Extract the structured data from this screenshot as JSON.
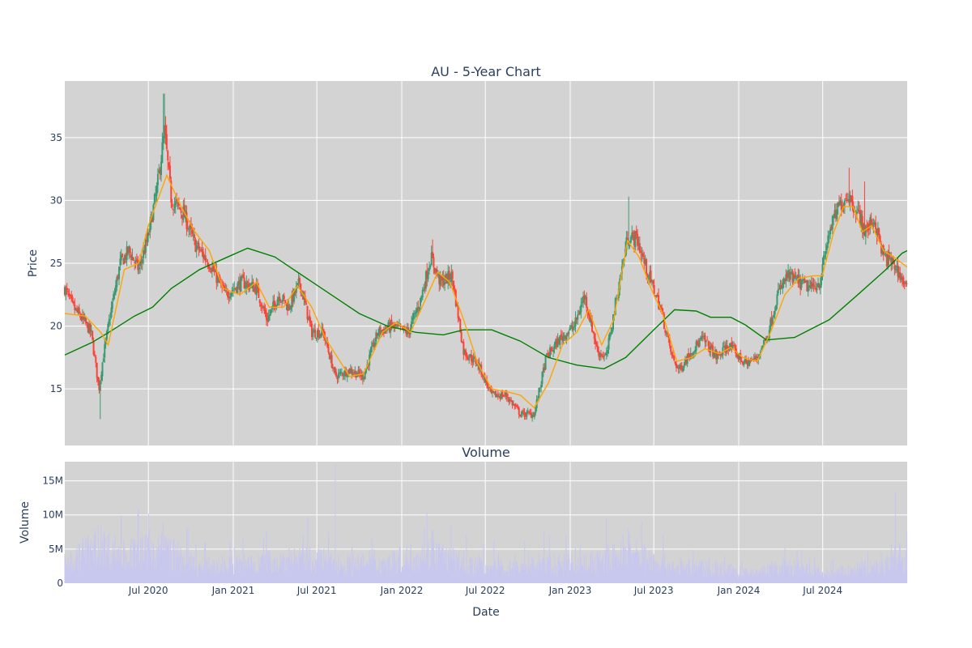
{
  "chart_data": [
    {
      "type": "candlestick",
      "title": "AU - 5-Year Chart",
      "ylabel": "Price",
      "ylim": [
        10.5,
        39.5
      ],
      "y_ticks": [
        15,
        20,
        25,
        30,
        35
      ],
      "xlim": [
        "2020-01-02",
        "2024-12-31"
      ],
      "x_ticks": [
        "2020-07-01",
        "2021-01-01",
        "2021-07-01",
        "2022-01-01",
        "2022-07-01",
        "2023-01-01",
        "2023-07-01",
        "2024-01-01",
        "2024-07-01"
      ],
      "x_tick_labels": [
        "Jul 2020",
        "Jan 2021",
        "Jul 2021",
        "Jan 2022",
        "Jul 2022",
        "Jan 2023",
        "Jul 2023",
        "Jan 2024",
        "Jul 2024"
      ],
      "grid": true,
      "colors": {
        "increasing": "#3d9970",
        "decreasing": "#ff4136",
        "ma_short": "#ffa500",
        "ma_long": "#008000",
        "plot_bg": "#d3d3d3"
      },
      "close_anchors": [
        [
          "2020-01-02",
          23.0
        ],
        [
          "2020-01-20",
          21.5
        ],
        [
          "2020-02-10",
          20.5
        ],
        [
          "2020-02-28",
          19.5
        ],
        [
          "2020-03-16",
          15.0
        ],
        [
          "2020-03-25",
          17.5
        ],
        [
          "2020-04-10",
          21.0
        ],
        [
          "2020-05-01",
          25.0
        ],
        [
          "2020-05-20",
          26.0
        ],
        [
          "2020-06-10",
          24.5
        ],
        [
          "2020-06-30",
          27.0
        ],
        [
          "2020-07-20",
          31.0
        ],
        [
          "2020-08-05",
          35.5
        ],
        [
          "2020-08-20",
          30.0
        ],
        [
          "2020-09-15",
          29.0
        ],
        [
          "2020-10-10",
          26.5
        ],
        [
          "2020-11-10",
          25.0
        ],
        [
          "2020-12-15",
          22.5
        ],
        [
          "2021-01-20",
          23.5
        ],
        [
          "2021-02-20",
          23.0
        ],
        [
          "2021-03-15",
          20.5
        ],
        [
          "2021-04-10",
          22.5
        ],
        [
          "2021-05-01",
          21.5
        ],
        [
          "2021-05-25",
          23.5
        ],
        [
          "2021-06-20",
          19.5
        ],
        [
          "2021-07-15",
          19.5
        ],
        [
          "2021-08-10",
          16.0
        ],
        [
          "2021-09-10",
          16.5
        ],
        [
          "2021-10-10",
          16.0
        ],
        [
          "2021-11-10",
          19.5
        ],
        [
          "2021-12-10",
          20.0
        ],
        [
          "2022-01-15",
          19.5
        ],
        [
          "2022-02-10",
          22.0
        ],
        [
          "2022-03-05",
          25.5
        ],
        [
          "2022-03-25",
          23.5
        ],
        [
          "2022-04-20",
          24.0
        ],
        [
          "2022-05-15",
          18.0
        ],
        [
          "2022-06-15",
          17.0
        ],
        [
          "2022-07-15",
          14.5
        ],
        [
          "2022-08-15",
          14.5
        ],
        [
          "2022-09-15",
          13.0
        ],
        [
          "2022-10-15",
          13.0
        ],
        [
          "2022-11-10",
          17.5
        ],
        [
          "2022-12-10",
          19.0
        ],
        [
          "2023-01-10",
          20.0
        ],
        [
          "2023-02-01",
          22.5
        ],
        [
          "2023-03-01",
          18.0
        ],
        [
          "2023-03-20",
          17.5
        ],
        [
          "2023-04-10",
          22.0
        ],
        [
          "2023-05-05",
          27.0
        ],
        [
          "2023-05-25",
          27.0
        ],
        [
          "2023-06-15",
          24.5
        ],
        [
          "2023-07-15",
          21.5
        ],
        [
          "2023-08-10",
          17.5
        ],
        [
          "2023-08-25",
          16.5
        ],
        [
          "2023-09-20",
          18.0
        ],
        [
          "2023-10-15",
          19.0
        ],
        [
          "2023-11-15",
          17.5
        ],
        [
          "2023-12-10",
          18.5
        ],
        [
          "2024-01-15",
          17.0
        ],
        [
          "2024-02-10",
          17.5
        ],
        [
          "2024-03-05",
          19.5
        ],
        [
          "2024-03-25",
          22.5
        ],
        [
          "2024-04-15",
          24.0
        ],
        [
          "2024-05-10",
          23.5
        ],
        [
          "2024-06-05",
          23.0
        ],
        [
          "2024-06-25",
          23.5
        ],
        [
          "2024-07-15",
          27.5
        ],
        [
          "2024-08-05",
          29.5
        ],
        [
          "2024-08-25",
          30.5
        ],
        [
          "2024-09-15",
          29.0
        ],
        [
          "2024-10-01",
          27.5
        ],
        [
          "2024-10-20",
          28.5
        ],
        [
          "2024-11-10",
          25.5
        ],
        [
          "2024-12-01",
          25.0
        ],
        [
          "2024-12-31",
          23.0
        ]
      ],
      "spikes": [
        [
          "2020-03-18",
          12.6
        ],
        [
          "2020-08-04",
          38.5
        ],
        [
          "2022-03-08",
          26.9
        ],
        [
          "2023-05-08",
          30.3
        ],
        [
          "2024-08-28",
          32.6
        ],
        [
          "2024-09-30",
          31.5
        ]
      ],
      "ma_short": [
        [
          "2020-01-02",
          21.0
        ],
        [
          "2020-02-15",
          20.8
        ],
        [
          "2020-03-20",
          19.5
        ],
        [
          "2020-04-05",
          18.5
        ],
        [
          "2020-05-10",
          24.5
        ],
        [
          "2020-06-10",
          25.0
        ],
        [
          "2020-07-01",
          28.0
        ],
        [
          "2020-08-10",
          32.0
        ],
        [
          "2020-09-10",
          29.5
        ],
        [
          "2020-10-10",
          27.5
        ],
        [
          "2020-11-10",
          26.0
        ],
        [
          "2020-12-10",
          23.0
        ],
        [
          "2021-01-15",
          22.5
        ],
        [
          "2021-02-20",
          23.5
        ],
        [
          "2021-03-20",
          21.5
        ],
        [
          "2021-04-20",
          21.5
        ],
        [
          "2021-05-20",
          23.2
        ],
        [
          "2021-06-20",
          21.5
        ],
        [
          "2021-07-20",
          19.0
        ],
        [
          "2021-09-10",
          16.0
        ],
        [
          "2021-10-10",
          16.2
        ],
        [
          "2021-11-20",
          19.5
        ],
        [
          "2021-12-20",
          20.3
        ],
        [
          "2022-01-20",
          19.5
        ],
        [
          "2022-02-20",
          22.0
        ],
        [
          "2022-03-20",
          24.3
        ],
        [
          "2022-04-15",
          23.5
        ],
        [
          "2022-05-15",
          20.5
        ],
        [
          "2022-06-15",
          17.0
        ],
        [
          "2022-07-15",
          15.0
        ],
        [
          "2022-08-15",
          14.8
        ],
        [
          "2022-09-15",
          14.5
        ],
        [
          "2022-10-15",
          13.5
        ],
        [
          "2022-11-15",
          15.5
        ],
        [
          "2022-12-15",
          18.5
        ],
        [
          "2023-01-15",
          19.5
        ],
        [
          "2023-02-10",
          21.3
        ],
        [
          "2023-03-10",
          18.5
        ],
        [
          "2023-04-05",
          20.5
        ],
        [
          "2023-05-05",
          26.8
        ],
        [
          "2023-05-30",
          25.5
        ],
        [
          "2023-06-25",
          23.0
        ],
        [
          "2023-07-20",
          21.0
        ],
        [
          "2023-08-20",
          17.2
        ],
        [
          "2023-09-20",
          17.5
        ],
        [
          "2023-10-20",
          18.2
        ],
        [
          "2023-11-20",
          17.8
        ],
        [
          "2023-12-15",
          18.3
        ],
        [
          "2024-01-10",
          17.5
        ],
        [
          "2024-02-10",
          17.2
        ],
        [
          "2024-03-10",
          19.5
        ],
        [
          "2024-04-10",
          22.5
        ],
        [
          "2024-05-10",
          23.8
        ],
        [
          "2024-06-10",
          24.0
        ],
        [
          "2024-06-30",
          24.0
        ],
        [
          "2024-07-25",
          27.5
        ],
        [
          "2024-08-15",
          29.5
        ],
        [
          "2024-09-05",
          29.5
        ],
        [
          "2024-09-25",
          27.5
        ],
        [
          "2024-10-15",
          28.0
        ],
        [
          "2024-11-10",
          26.0
        ],
        [
          "2024-12-01",
          25.5
        ],
        [
          "2024-12-31",
          24.7
        ]
      ],
      "ma_long": [
        [
          "2020-01-02",
          17.7
        ],
        [
          "2020-03-01",
          18.7
        ],
        [
          "2020-04-15",
          19.7
        ],
        [
          "2020-06-01",
          20.8
        ],
        [
          "2020-07-10",
          21.5
        ],
        [
          "2020-08-20",
          23.0
        ],
        [
          "2020-10-20",
          24.5
        ],
        [
          "2020-12-20",
          25.5
        ],
        [
          "2021-02-01",
          26.2
        ],
        [
          "2021-04-01",
          25.5
        ],
        [
          "2021-06-01",
          24.0
        ],
        [
          "2021-08-01",
          22.5
        ],
        [
          "2021-10-01",
          21.0
        ],
        [
          "2021-12-01",
          20.0
        ],
        [
          "2022-02-01",
          19.5
        ],
        [
          "2022-04-01",
          19.3
        ],
        [
          "2022-05-15",
          19.7
        ],
        [
          "2022-07-15",
          19.7
        ],
        [
          "2022-09-15",
          18.8
        ],
        [
          "2022-11-15",
          17.5
        ],
        [
          "2023-01-15",
          16.9
        ],
        [
          "2023-03-15",
          16.6
        ],
        [
          "2023-05-01",
          17.5
        ],
        [
          "2023-07-01",
          19.7
        ],
        [
          "2023-08-15",
          21.3
        ],
        [
          "2023-10-01",
          21.2
        ],
        [
          "2023-11-01",
          20.7
        ],
        [
          "2023-12-15",
          20.7
        ],
        [
          "2024-01-15",
          20.1
        ],
        [
          "2024-03-01",
          18.9
        ],
        [
          "2024-05-01",
          19.1
        ],
        [
          "2024-07-15",
          20.5
        ],
        [
          "2024-09-15",
          22.5
        ],
        [
          "2024-11-15",
          24.5
        ],
        [
          "2024-12-20",
          25.8
        ],
        [
          "2024-12-31",
          26.0
        ]
      ]
    },
    {
      "type": "bar",
      "title": "Volume",
      "xlabel": "Date",
      "ylabel": "Volume",
      "ylim": [
        0,
        17.8
      ],
      "y_unit": "M",
      "y_ticks": [
        0,
        5,
        10,
        15
      ],
      "y_tick_labels": [
        "0",
        "5M",
        "10M",
        "15M"
      ],
      "x_ticks": [
        "2020-07-01",
        "2021-01-01",
        "2021-07-01",
        "2022-01-01",
        "2022-07-01",
        "2023-01-01",
        "2023-07-01",
        "2024-01-01",
        "2024-07-01"
      ],
      "x_tick_labels": [
        "Jul 2020",
        "Jan 2021",
        "Jul 2021",
        "Jan 2022",
        "Jul 2022",
        "Jan 2023",
        "Jul 2023",
        "Jan 2024",
        "Jul 2024"
      ],
      "colors": {
        "bar": "#c8c8ee",
        "plot_bg": "#d3d3d3"
      },
      "volume_anchors": [
        [
          "2020-01-02",
          3.0
        ],
        [
          "2020-03-15",
          6.0
        ],
        [
          "2020-05-15",
          4.5
        ],
        [
          "2020-08-05",
          5.5
        ],
        [
          "2020-10-15",
          2.5
        ],
        [
          "2021-01-15",
          3.0
        ],
        [
          "2021-04-15",
          3.5
        ],
        [
          "2021-06-15",
          4.0
        ],
        [
          "2021-08-15",
          3.0
        ],
        [
          "2021-11-15",
          3.0
        ],
        [
          "2022-03-10",
          5.0
        ],
        [
          "2022-05-15",
          3.0
        ],
        [
          "2022-08-15",
          2.5
        ],
        [
          "2022-11-15",
          3.0
        ],
        [
          "2023-02-15",
          3.0
        ],
        [
          "2023-05-10",
          5.0
        ],
        [
          "2023-08-15",
          2.5
        ],
        [
          "2023-11-15",
          2.5
        ],
        [
          "2024-01-15",
          1.5
        ],
        [
          "2024-04-15",
          2.5
        ],
        [
          "2024-07-15",
          1.5
        ],
        [
          "2024-10-15",
          2.5
        ],
        [
          "2024-12-31",
          3.5
        ]
      ],
      "volume_spikes": [
        [
          "2020-03-20",
          8.5
        ],
        [
          "2020-08-05",
          7.0
        ],
        [
          "2021-06-01",
          7.2
        ],
        [
          "2021-08-10",
          17.3
        ],
        [
          "2022-03-08",
          7.8
        ],
        [
          "2022-11-05",
          7.5
        ],
        [
          "2023-03-20",
          9.5
        ],
        [
          "2023-05-10",
          7.3
        ],
        [
          "2024-12-05",
          13.3
        ],
        [
          "2024-12-15",
          5.8
        ]
      ]
    }
  ]
}
